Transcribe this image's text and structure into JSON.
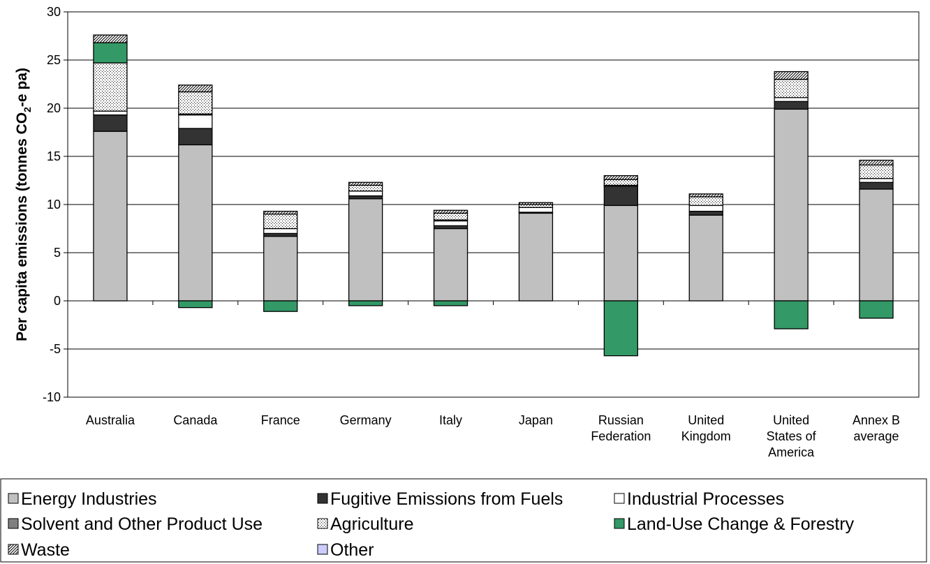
{
  "chart_data": {
    "type": "bar",
    "stacked": true,
    "ylabel_main": "Per capita emissions (tonnes CO",
    "ylabel_sub": "2",
    "ylabel_tail": "-e pa)",
    "ylim": [
      -10,
      30
    ],
    "yticks": [
      -10,
      -5,
      0,
      5,
      10,
      15,
      20,
      25,
      30
    ],
    "grid": true,
    "legend_position": "bottom",
    "categories": [
      [
        "Australia"
      ],
      [
        "Canada"
      ],
      [
        "France"
      ],
      [
        "Germany"
      ],
      [
        "Italy"
      ],
      [
        "Japan"
      ],
      [
        "Russian",
        "Federation"
      ],
      [
        "United",
        "Kingdom"
      ],
      [
        "United",
        "States of",
        "America"
      ],
      [
        "Annex B",
        "average"
      ]
    ],
    "series": [
      {
        "name": "Energy Industries",
        "color": "#c0c0c0",
        "pattern": "solid",
        "values": [
          17.6,
          16.2,
          6.7,
          10.6,
          7.5,
          9.1,
          9.9,
          8.9,
          19.9,
          11.6
        ]
      },
      {
        "name": "Fugitive Emissions from Fuels",
        "color": "#333333",
        "pattern": "solid",
        "values": [
          1.7,
          1.7,
          0.3,
          0.3,
          0.3,
          0.1,
          2.0,
          0.4,
          0.8,
          0.7
        ]
      },
      {
        "name": "Industrial Processes",
        "color": "#ffffff",
        "pattern": "solid",
        "values": [
          0.4,
          1.4,
          0.5,
          0.5,
          0.5,
          0.5,
          0.1,
          0.6,
          0.4,
          0.4
        ]
      },
      {
        "name": "Solvent and Other Product Use",
        "color": "#808080",
        "pattern": "solid",
        "values": [
          0.0,
          0.1,
          0.0,
          0.0,
          0.1,
          0.0,
          0.0,
          0.0,
          0.0,
          0.0
        ]
      },
      {
        "name": "Agriculture",
        "color": "#ffffff",
        "pattern": "dots",
        "values": [
          5.0,
          2.3,
          1.5,
          0.6,
          0.7,
          0.3,
          0.6,
          0.9,
          1.9,
          1.4
        ]
      },
      {
        "name": "Land-Use Change & Forestry",
        "color": "#339966",
        "pattern": "solid",
        "values": [
          2.1,
          -0.7,
          -1.1,
          -0.5,
          -0.5,
          0.0,
          -5.7,
          0.0,
          -2.9,
          -1.8
        ]
      },
      {
        "name": "Waste",
        "color": "#ffffff",
        "pattern": "diag",
        "values": [
          0.8,
          0.7,
          0.3,
          0.3,
          0.3,
          0.2,
          0.4,
          0.3,
          0.8,
          0.5
        ]
      },
      {
        "name": "Other",
        "color": "#ccccff",
        "pattern": "solid",
        "values": [
          0,
          0,
          0,
          0,
          0,
          0,
          0,
          0,
          0,
          0
        ]
      }
    ]
  }
}
